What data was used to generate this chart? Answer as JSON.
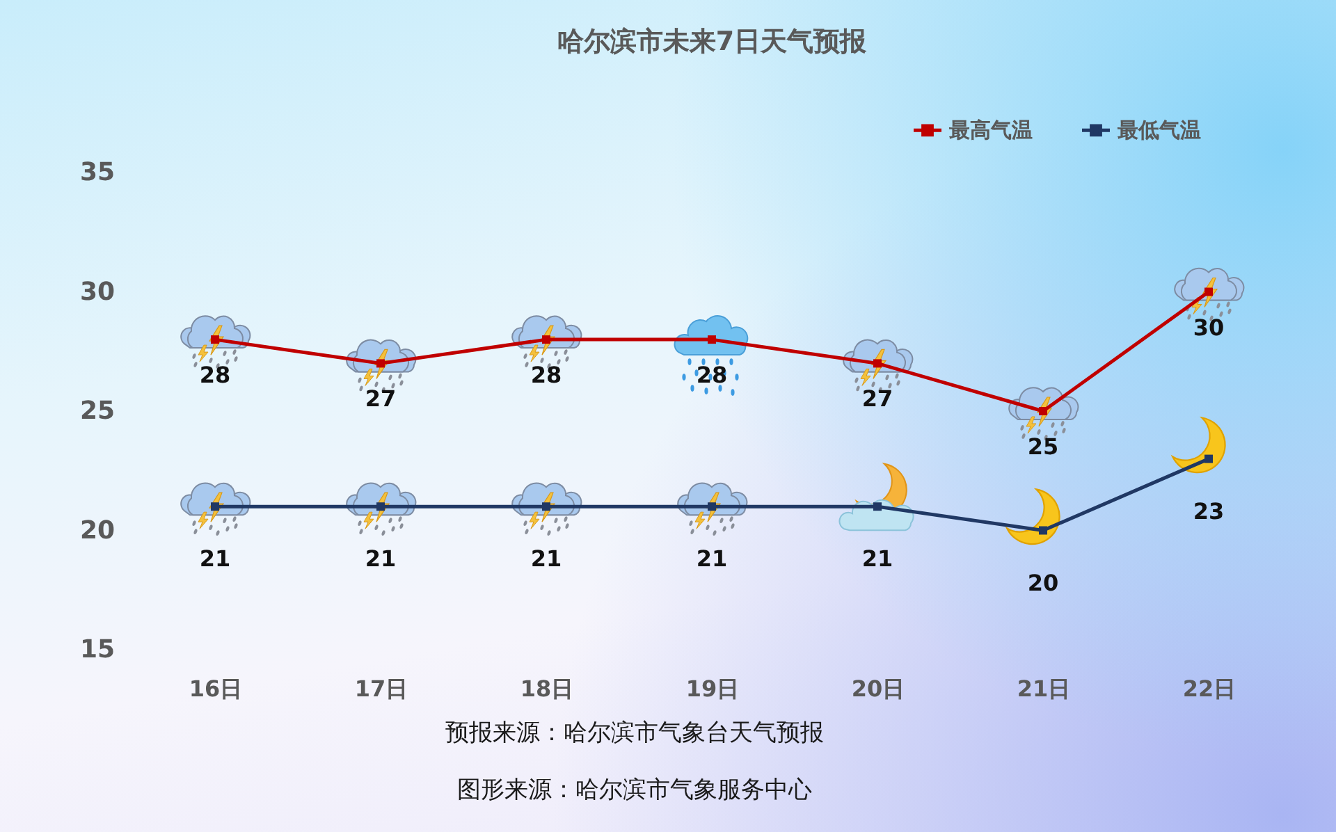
{
  "chart_data": {
    "type": "line",
    "title": "哈尔滨市未来7日天气预报",
    "categories": [
      "16日",
      "17日",
      "18日",
      "19日",
      "20日",
      "21日",
      "22日"
    ],
    "series": [
      {
        "name": "最高气温",
        "color": "#c00000",
        "values": [
          28,
          27,
          28,
          28,
          27,
          25,
          30
        ]
      },
      {
        "name": "最低气温",
        "color": "#203864",
        "values": [
          21,
          21,
          21,
          21,
          21,
          20,
          23
        ]
      }
    ],
    "ylim": [
      15,
      35
    ],
    "yticks": [
      15,
      20,
      25,
      30,
      35
    ],
    "grid": false,
    "legend": "top right",
    "marker": "square",
    "data_labels": true,
    "annotations": [
      "预报来源：哈尔滨市气象台天气预报",
      "图形来源：哈尔滨市气象服务中心"
    ]
  }
}
